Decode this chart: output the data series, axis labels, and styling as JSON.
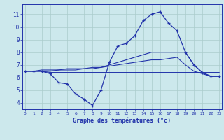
{
  "title": "Graphe des températures (°c)",
  "background_color": "#cce8ec",
  "grid_color": "#aacccc",
  "line_color": "#2233aa",
  "x_hours": [
    0,
    1,
    2,
    3,
    4,
    5,
    6,
    7,
    8,
    9,
    10,
    11,
    12,
    13,
    14,
    15,
    16,
    17,
    18,
    19,
    20,
    21,
    22,
    23
  ],
  "ylim": [
    3.5,
    11.8
  ],
  "xlim": [
    -0.3,
    23.3
  ],
  "yticks": [
    4,
    5,
    6,
    7,
    8,
    9,
    10,
    11
  ],
  "xticks": [
    0,
    1,
    2,
    3,
    4,
    5,
    6,
    7,
    8,
    9,
    10,
    11,
    12,
    13,
    14,
    15,
    16,
    17,
    18,
    19,
    20,
    21,
    22,
    23
  ],
  "line1_y": [
    6.5,
    6.5,
    6.5,
    6.3,
    5.6,
    5.5,
    4.7,
    4.3,
    3.8,
    5.0,
    7.2,
    8.5,
    8.7,
    9.3,
    10.5,
    11.0,
    11.2,
    10.3,
    9.7,
    8.0,
    7.0,
    6.4,
    6.1,
    6.1
  ],
  "line2_y": [
    6.5,
    6.5,
    6.5,
    6.4,
    6.4,
    6.4,
    6.4,
    6.4,
    6.4,
    6.4,
    6.4,
    6.4,
    6.4,
    6.4,
    6.4,
    6.4,
    6.4,
    6.4,
    6.4,
    6.4,
    6.4,
    6.4,
    6.4,
    6.4
  ],
  "line3_y": [
    6.5,
    6.5,
    6.6,
    6.6,
    6.6,
    6.7,
    6.7,
    6.7,
    6.8,
    6.8,
    6.9,
    7.0,
    7.1,
    7.2,
    7.3,
    7.4,
    7.4,
    7.5,
    7.6,
    7.0,
    6.5,
    6.3,
    6.1,
    6.1
  ],
  "line4_y": [
    6.5,
    6.5,
    6.5,
    6.5,
    6.6,
    6.6,
    6.6,
    6.7,
    6.7,
    6.8,
    7.0,
    7.2,
    7.4,
    7.6,
    7.8,
    8.0,
    8.0,
    8.0,
    8.0,
    8.0,
    7.0,
    6.4,
    6.1,
    6.1
  ]
}
